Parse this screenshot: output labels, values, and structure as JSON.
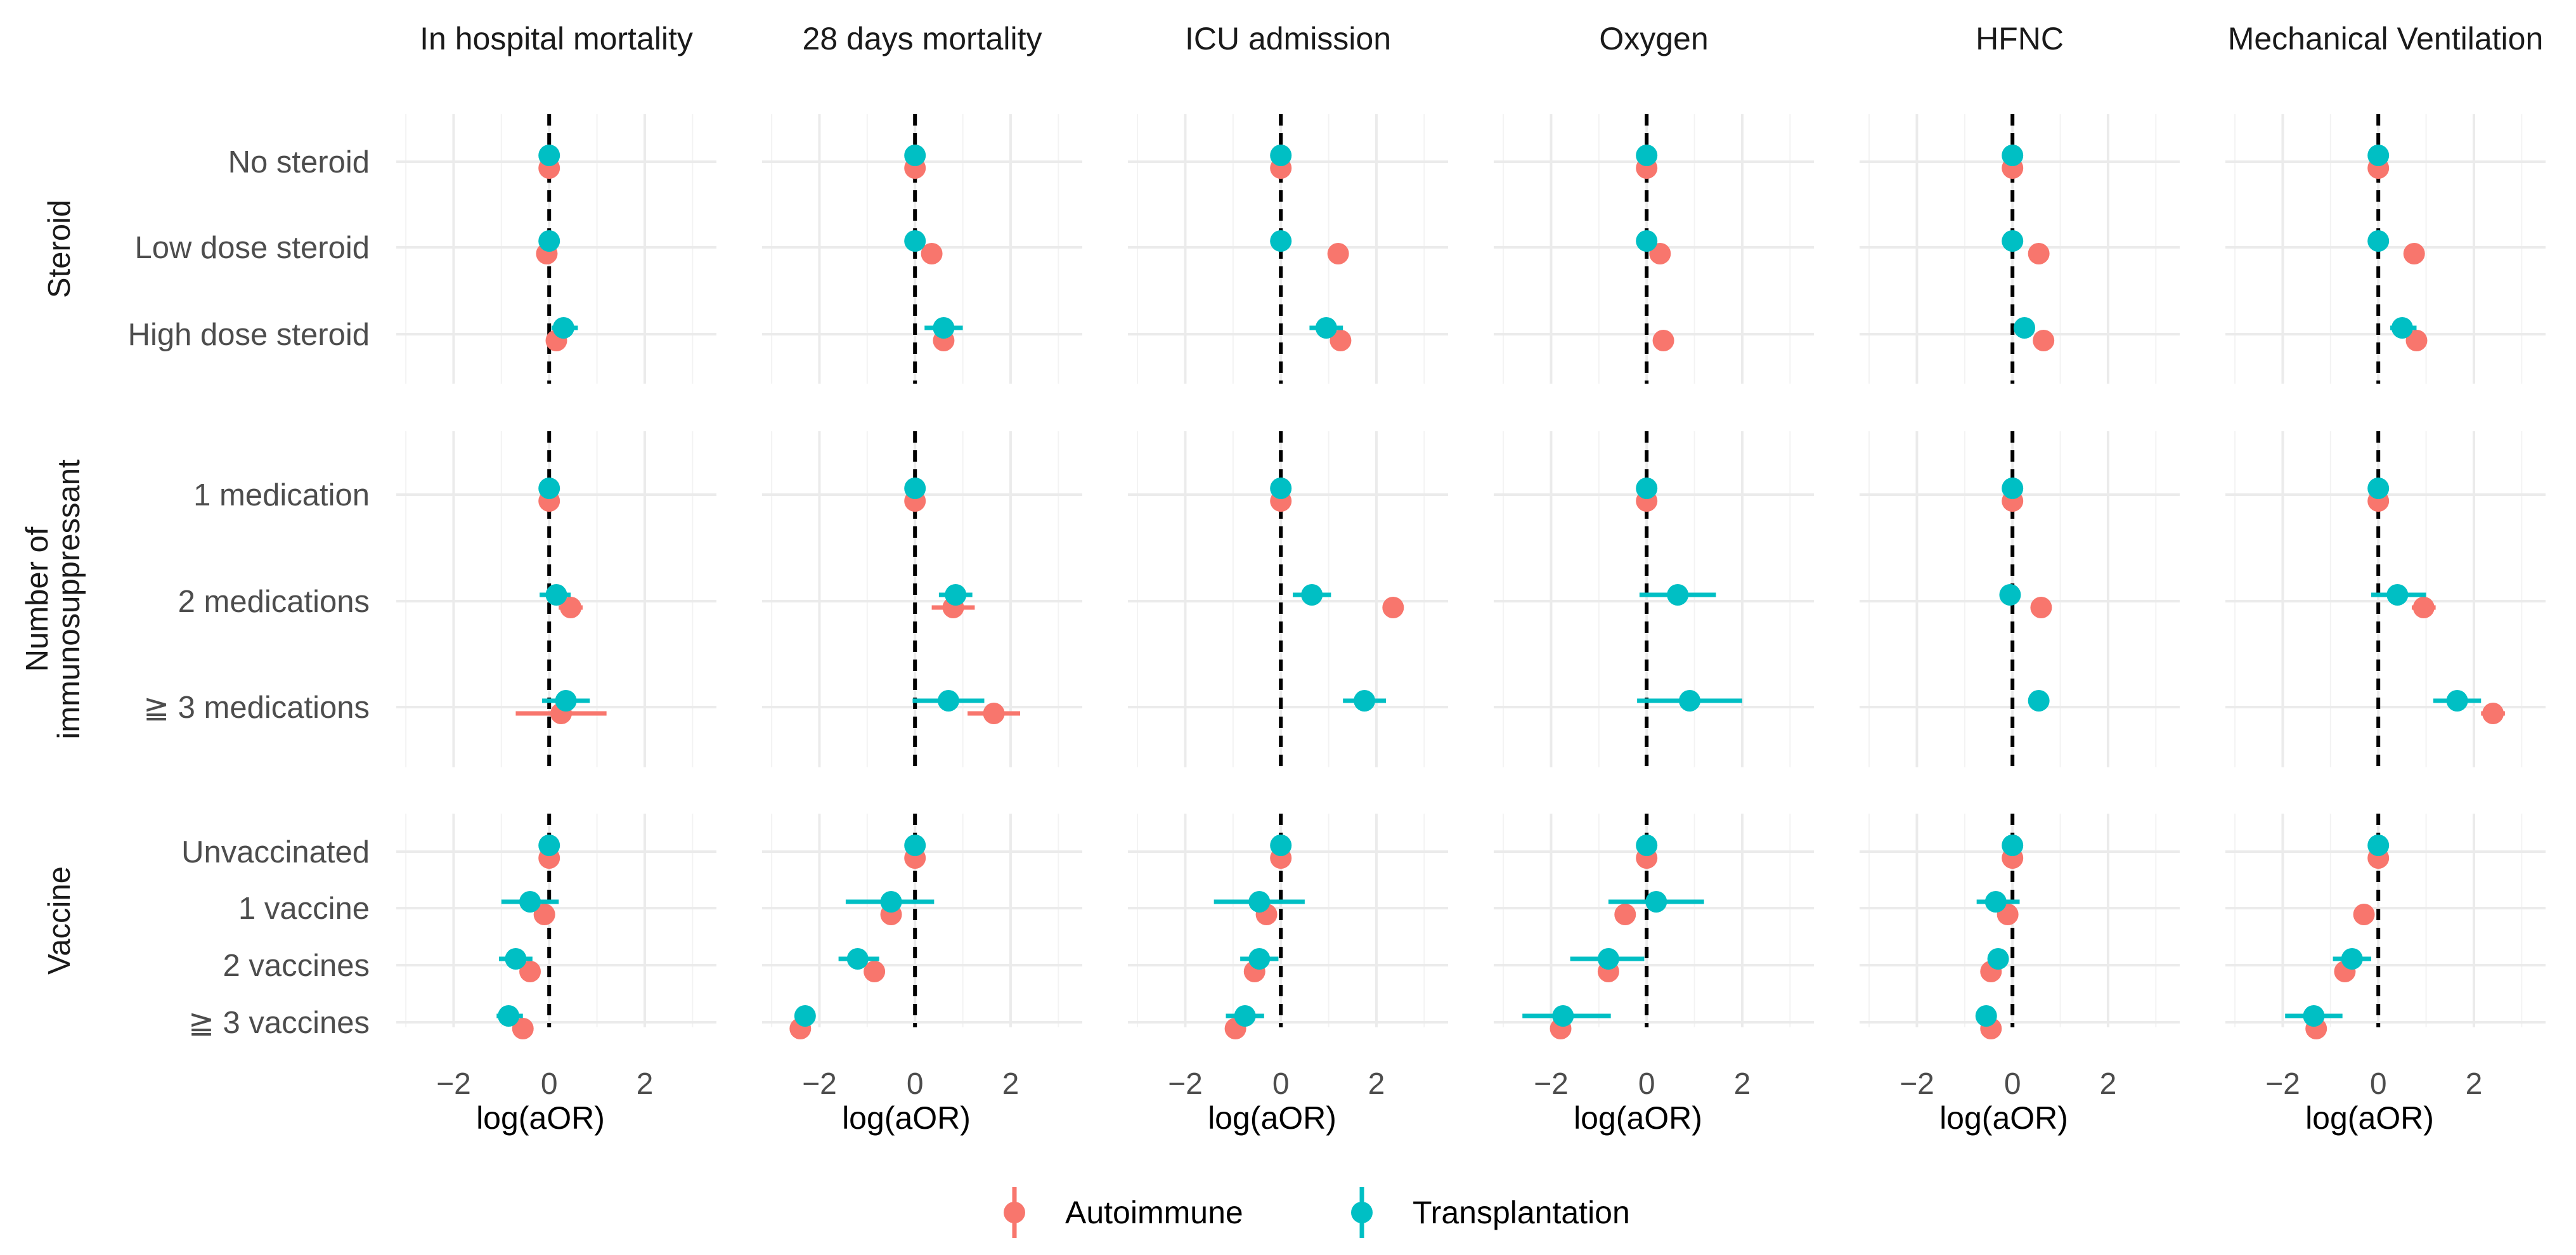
{
  "chart_data": {
    "type": "forest",
    "xlabel": "log(aOR)",
    "xlim": [
      -3.2,
      3.5
    ],
    "xticks": [
      -2,
      0,
      2
    ],
    "xtick_labels": [
      "−2",
      "0",
      "2"
    ],
    "reference_line": 0,
    "panels": [
      "In hospital mortality",
      "28 days mortality",
      "ICU admission",
      "Oxygen",
      "HFNC",
      "Mechanical Ventilation"
    ],
    "legend": [
      {
        "name": "Autoimmune",
        "color": "#F8766D"
      },
      {
        "name": "Transplantation",
        "color": "#00BFC4"
      }
    ],
    "groups": [
      {
        "label": "Steroid",
        "rows": [
          "No steroid",
          "Low dose steroid",
          "High dose steroid"
        ]
      },
      {
        "label": "Number of immunosuppressant",
        "label_lines": [
          "Number of",
          "immunosuppressant"
        ],
        "rows": [
          "1 medication",
          "2 medications",
          "≧ 3 medications"
        ]
      },
      {
        "label": "Vaccine",
        "rows": [
          "Unvaccinated",
          "1 vaccine",
          "2 vaccines",
          "≧ 3 vaccines"
        ]
      }
    ],
    "series": [
      {
        "name": "Autoimmune",
        "color": "#F8766D",
        "points": [
          [
            [
              0,
              0,
              0
            ],
            [
              0,
              0,
              0
            ],
            [
              0,
              0,
              0
            ],
            [
              0,
              0,
              0
            ],
            [
              0,
              0,
              0
            ],
            [
              0,
              0,
              0
            ]
          ],
          [
            [
              -0.05,
              -0.05,
              -0.05
            ],
            [
              0.35,
              0.35,
              0.35
            ],
            [
              1.2,
              1.2,
              1.2
            ],
            [
              0.28,
              0.28,
              0.28
            ],
            [
              0.55,
              0.55,
              0.55
            ],
            [
              0.75,
              0.75,
              0.75
            ]
          ],
          [
            [
              0.15,
              0.15,
              0.15
            ],
            [
              0.6,
              0.6,
              0.6
            ],
            [
              1.25,
              1.25,
              1.25
            ],
            [
              0.35,
              0.35,
              0.35
            ],
            [
              0.65,
              0.65,
              0.65
            ],
            [
              0.8,
              0.8,
              0.8
            ]
          ],
          [
            [
              0,
              0,
              0
            ],
            [
              0,
              0,
              0
            ],
            [
              0,
              0,
              0
            ],
            [
              0,
              0,
              0
            ],
            [
              0,
              0,
              0
            ],
            [
              0,
              0,
              0
            ]
          ],
          [
            [
              0.45,
              0.2,
              0.7
            ],
            [
              0.8,
              0.35,
              1.25
            ],
            [
              2.35,
              2.35,
              2.35
            ],
            null,
            [
              0.6,
              0.6,
              0.6
            ],
            [
              0.95,
              0.7,
              1.2
            ]
          ],
          [
            [
              0.25,
              -0.7,
              1.2
            ],
            [
              1.65,
              1.1,
              2.2
            ],
            null,
            null,
            null,
            [
              2.4,
              2.15,
              2.65
            ]
          ],
          [
            [
              0,
              0,
              0
            ],
            [
              0,
              0,
              0
            ],
            [
              0,
              0,
              0
            ],
            [
              0,
              0,
              0
            ],
            [
              0,
              0,
              0
            ],
            [
              0,
              0,
              0
            ]
          ],
          [
            [
              -0.1,
              -0.1,
              -0.1
            ],
            [
              -0.5,
              -0.5,
              -0.5
            ],
            [
              -0.3,
              -0.3,
              -0.3
            ],
            [
              -0.45,
              -0.45,
              -0.45
            ],
            [
              -0.1,
              -0.1,
              -0.1
            ],
            [
              -0.3,
              -0.3,
              -0.3
            ]
          ],
          [
            [
              -0.4,
              -0.4,
              -0.4
            ],
            [
              -0.85,
              -0.85,
              -0.85
            ],
            [
              -0.55,
              -0.55,
              -0.55
            ],
            [
              -0.8,
              -0.8,
              -0.8
            ],
            [
              -0.45,
              -0.45,
              -0.45
            ],
            [
              -0.7,
              -0.7,
              -0.7
            ]
          ],
          [
            [
              -0.55,
              -0.55,
              -0.55
            ],
            [
              -2.4,
              -2.4,
              -2.4
            ],
            [
              -0.95,
              -0.95,
              -0.95
            ],
            [
              -1.8,
              -1.8,
              -1.8
            ],
            [
              -0.45,
              -0.45,
              -0.45
            ],
            [
              -1.3,
              -1.3,
              -1.3
            ]
          ]
        ]
      },
      {
        "name": "Transplantation",
        "color": "#00BFC4",
        "points": [
          [
            [
              0,
              0,
              0
            ],
            [
              0,
              0,
              0
            ],
            [
              0,
              0,
              0
            ],
            [
              0,
              0,
              0
            ],
            [
              0,
              0,
              0
            ],
            [
              0,
              0,
              0
            ]
          ],
          [
            [
              0,
              0,
              0
            ],
            [
              0,
              0,
              0
            ],
            [
              0,
              0,
              0
            ],
            [
              0,
              0,
              0
            ],
            [
              0,
              0,
              0
            ],
            [
              0,
              0,
              0
            ]
          ],
          [
            [
              0.3,
              0.05,
              0.6
            ],
            [
              0.6,
              0.2,
              1.0
            ],
            [
              0.95,
              0.6,
              1.3
            ],
            null,
            [
              0.25,
              0.1,
              0.4
            ],
            [
              0.5,
              0.25,
              0.8
            ]
          ],
          [
            [
              0,
              0,
              0
            ],
            [
              0,
              0,
              0
            ],
            [
              0,
              0,
              0
            ],
            [
              0,
              0,
              0
            ],
            [
              0,
              0,
              0
            ],
            [
              0,
              0,
              0
            ]
          ],
          [
            [
              0.15,
              -0.2,
              0.45
            ],
            [
              0.85,
              0.5,
              1.2
            ],
            [
              0.65,
              0.25,
              1.05
            ],
            [
              0.65,
              -0.15,
              1.45
            ],
            [
              -0.05,
              -0.05,
              -0.05
            ],
            [
              0.4,
              -0.15,
              1.0
            ]
          ],
          [
            [
              0.35,
              -0.15,
              0.85
            ],
            [
              0.7,
              -0.05,
              1.45
            ],
            [
              1.75,
              1.3,
              2.2
            ],
            [
              0.9,
              -0.2,
              2.0
            ],
            [
              0.55,
              0.4,
              0.7
            ],
            [
              1.65,
              1.15,
              2.15
            ]
          ],
          [
            [
              0,
              0,
              0
            ],
            [
              0,
              0,
              0
            ],
            [
              0,
              0,
              0
            ],
            [
              0,
              0,
              0
            ],
            [
              0,
              0,
              0
            ],
            [
              0,
              0,
              0
            ]
          ],
          [
            [
              -0.4,
              -1.0,
              0.2
            ],
            [
              -0.5,
              -1.45,
              0.4
            ],
            [
              -0.45,
              -1.4,
              0.5
            ],
            [
              0.2,
              -0.8,
              1.2
            ],
            [
              -0.35,
              -0.75,
              0.15
            ],
            [
              null
            ]
          ],
          [
            [
              -0.7,
              -1.05,
              -0.35
            ],
            [
              -1.2,
              -1.6,
              -0.75
            ],
            [
              -0.45,
              -0.85,
              -0.05
            ],
            [
              -0.8,
              -1.6,
              -0.05
            ],
            [
              -0.3,
              -0.45,
              -0.1
            ],
            [
              -0.55,
              -0.95,
              -0.15
            ]
          ],
          [
            [
              -0.85,
              -1.1,
              -0.55
            ],
            [
              -2.3,
              -2.3,
              -2.3
            ],
            [
              -0.75,
              -1.15,
              -0.35
            ],
            [
              -1.75,
              -2.6,
              -0.75
            ],
            [
              -0.55,
              -0.65,
              -0.4
            ],
            [
              -1.35,
              -1.95,
              -0.75
            ]
          ]
        ]
      }
    ]
  }
}
